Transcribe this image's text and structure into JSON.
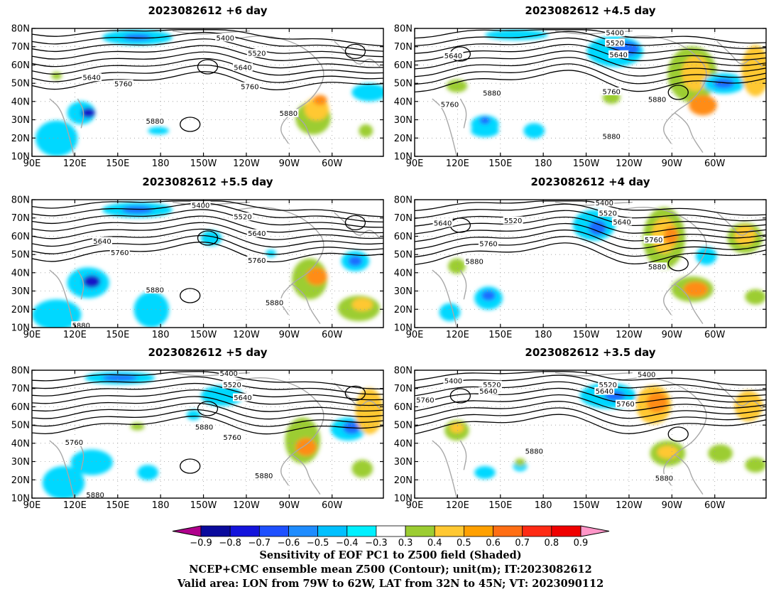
{
  "panels": [
    {
      "title": "2023082612 +6 day"
    },
    {
      "title": "2023082612 +4.5 day"
    },
    {
      "title": "2023082612 +5.5 day"
    },
    {
      "title": "2023082612 +4 day"
    },
    {
      "title": "2023082612 +5 day"
    },
    {
      "title": "2023082612 +3.5 day"
    }
  ],
  "axes": {
    "lat_labels": [
      "80N",
      "70N",
      "60N",
      "50N",
      "40N",
      "30N",
      "20N",
      "10N"
    ],
    "lon_labels": [
      "90E",
      "120E",
      "150E",
      "180",
      "150W",
      "120W",
      "90W",
      "60W"
    ]
  },
  "contour_labels": {
    "p0": [
      "5400",
      "5520",
      "5640",
      "5640",
      "5760",
      "5760",
      "5880",
      "5880"
    ],
    "p1": [
      "5400",
      "5520",
      "5640",
      "5640",
      "5760",
      "5880",
      "5760",
      "5880",
      "5880"
    ],
    "p2": [
      "5400",
      "5520",
      "5640",
      "5640",
      "5760",
      "5760",
      "5880",
      "5880",
      "5880"
    ],
    "p3": [
      "5400",
      "5520",
      "5640",
      "5640",
      "5520",
      "5760",
      "5880",
      "5760",
      "5880"
    ],
    "p4": [
      "5400",
      "5520",
      "5640",
      "5760",
      "5880",
      "5760",
      "5880",
      "5880"
    ],
    "p5": [
      "5400",
      "5520",
      "5640",
      "5400",
      "5520",
      "5640",
      "5760",
      "5760",
      "5880",
      "5880"
    ]
  },
  "colorbar": {
    "labels": [
      "−0.9",
      "−0.8",
      "−0.7",
      "−0.6",
      "−0.5",
      "−0.4",
      "−0.3",
      "0.3",
      "0.4",
      "0.5",
      "0.6",
      "0.7",
      "0.8",
      "0.9"
    ],
    "colors": [
      "#b0008c",
      "#0a0a9c",
      "#1414dc",
      "#1e50ff",
      "#1e8cff",
      "#00c0ff",
      "#00f0ff",
      "#ffffff",
      "#9ccd32",
      "#ffc832",
      "#ffa000",
      "#ff6e14",
      "#ff2a14",
      "#f00000",
      "#ff96c8"
    ]
  },
  "caption": {
    "line1": "Sensitivity of EOF PC1 to Z500 field (Shaded)",
    "line2": "NCEP+CMC ensemble mean Z500 (Contour); unit(m); IT:2023082612",
    "line3": "Valid area: LON from 79W to 62W, LAT from 32N to 45N; VT: 2023090112"
  }
}
